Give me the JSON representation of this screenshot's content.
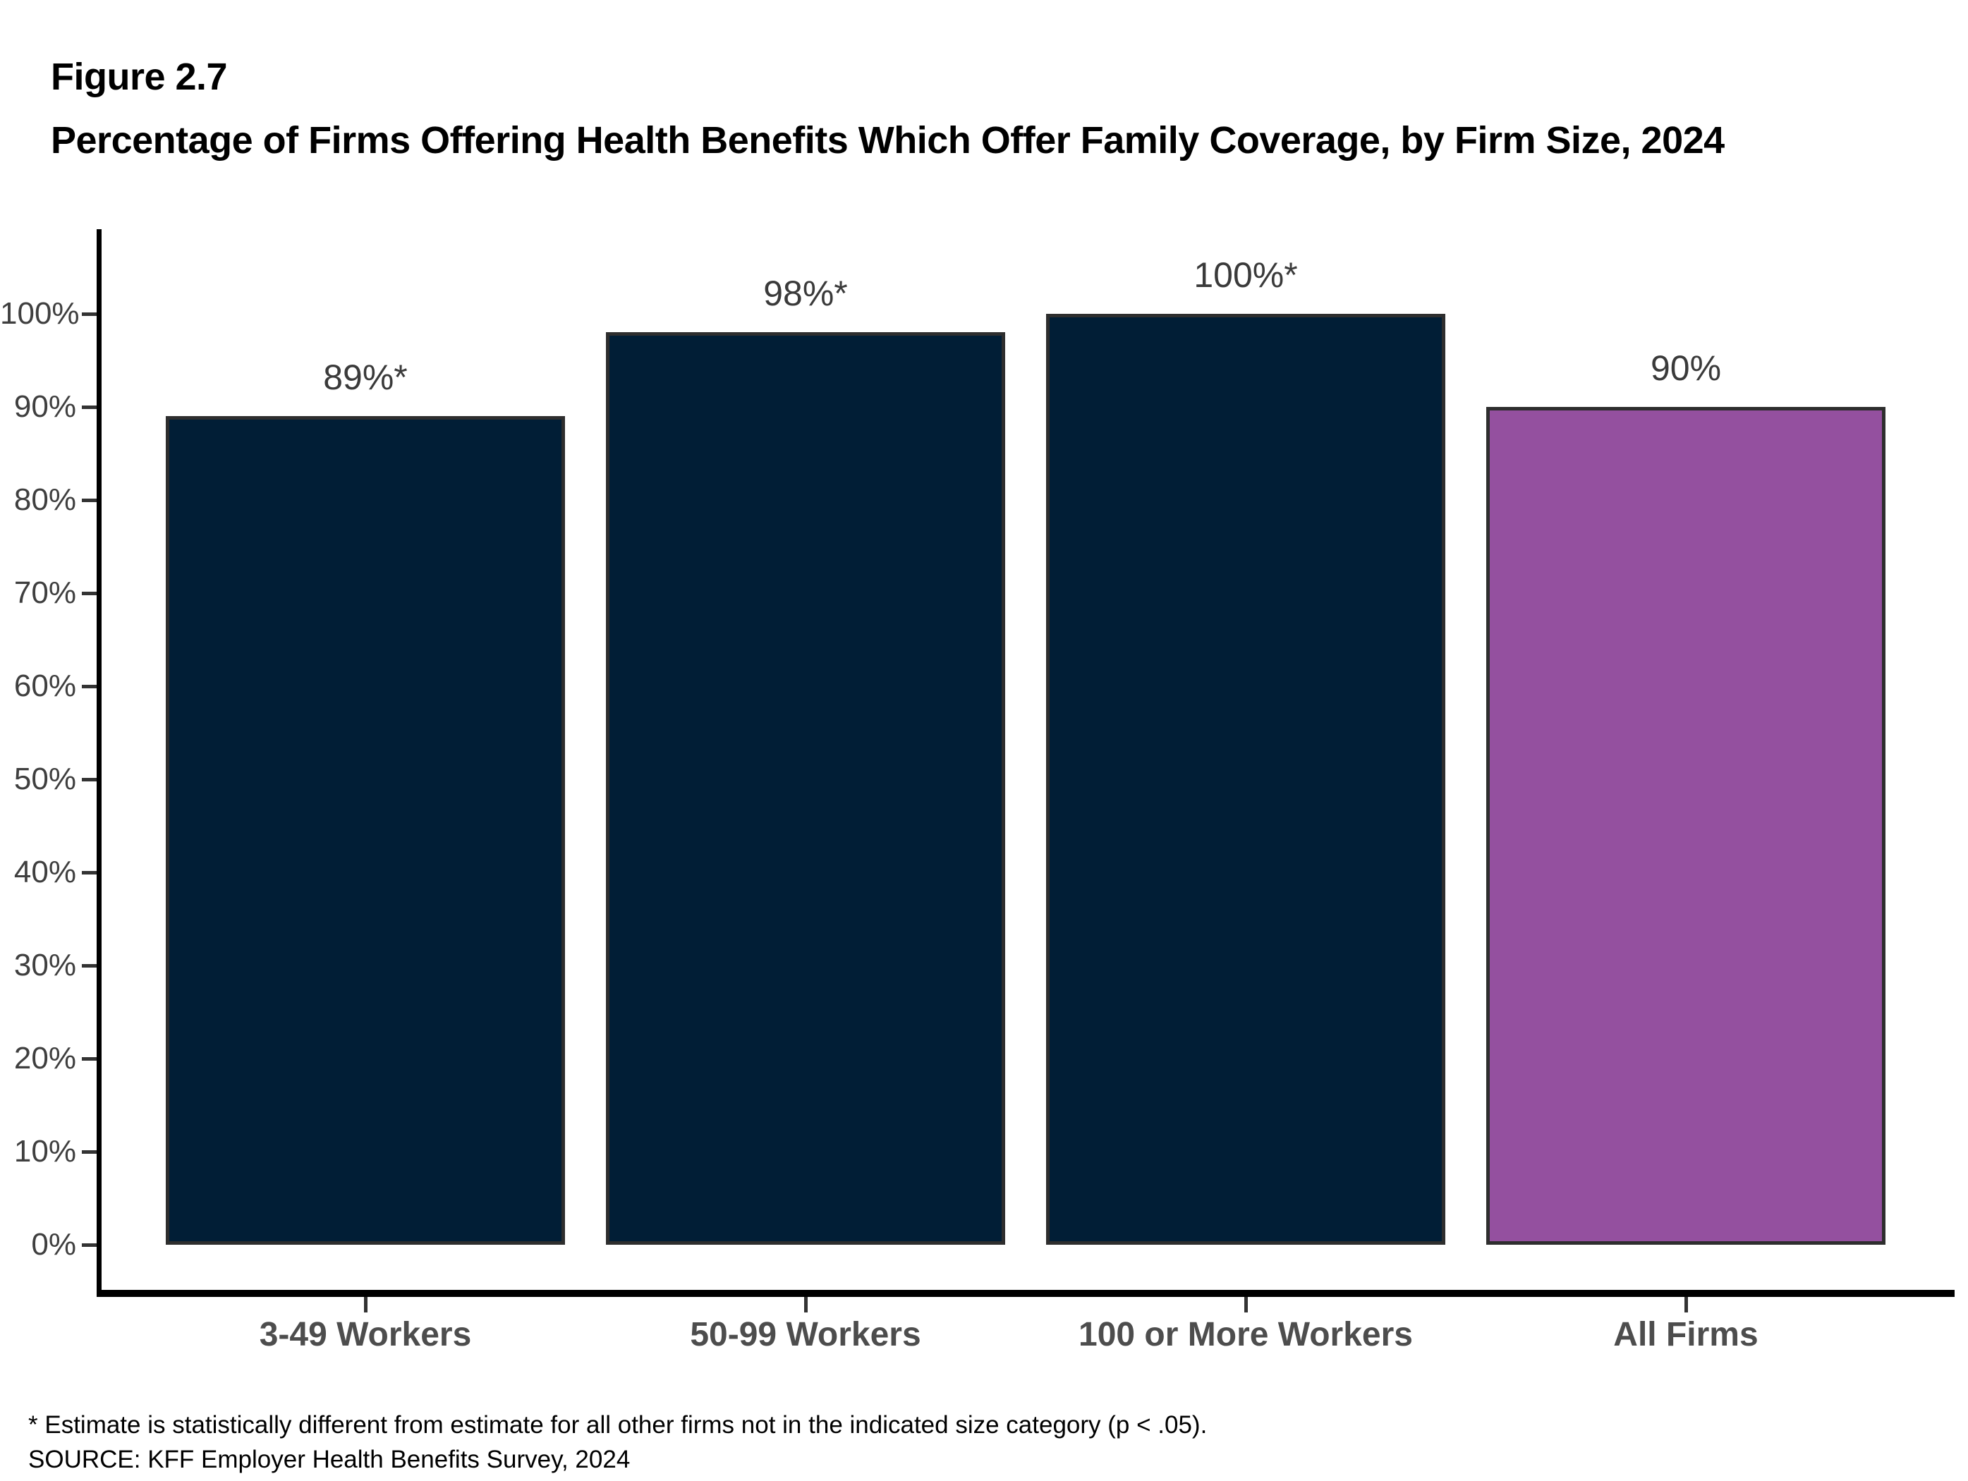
{
  "figure_label": "Figure 2.7",
  "title": "Percentage of Firms Offering Health Benefits Which Offer Family Coverage, by Firm Size, 2024",
  "footnotes": {
    "significance": "* Estimate is statistically different from estimate for all other firms not in the indicated size category (p < .05).",
    "source": "SOURCE: KFF Employer Health Benefits Survey, 2024"
  },
  "chart_data": {
    "type": "bar",
    "title": "Percentage of Firms Offering Health Benefits Which Offer Family Coverage, by Firm Size, 2024",
    "categories": [
      "3-49 Workers",
      "50-99 Workers",
      "100 or More Workers",
      "All Firms"
    ],
    "values": [
      89,
      98,
      100,
      90
    ],
    "value_labels": [
      "89%*",
      "98%*",
      "100%*",
      "90%"
    ],
    "bar_colors": [
      "#011e36",
      "#011e36",
      "#011e36",
      "#94509f"
    ],
    "bar_border_color": "#2e2e2e",
    "xlabel": "",
    "ylabel": "",
    "ylim": [
      0,
      100
    ],
    "y_ticks": [
      "0%",
      "10%",
      "20%",
      "30%",
      "40%",
      "50%",
      "60%",
      "70%",
      "80%",
      "90%",
      "100%"
    ],
    "grid": false,
    "legend": "none",
    "axis_color": "#000000",
    "tick_label_color": "#3f3f3f",
    "category_label_color": "#4d4d4d",
    "value_label_color": "#3a3a3a"
  }
}
